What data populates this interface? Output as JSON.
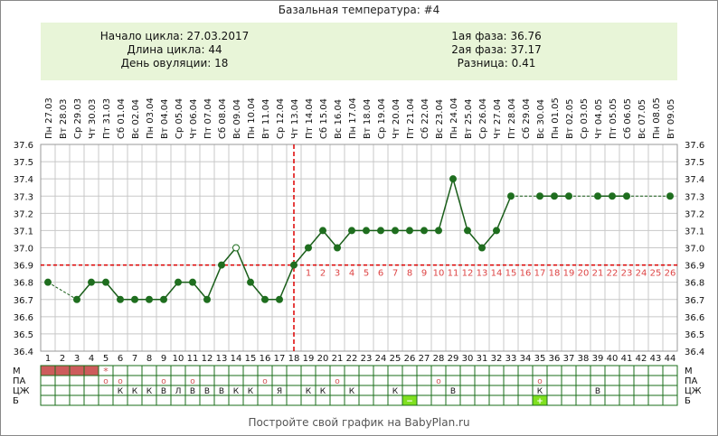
{
  "title": "Базальная температура: #4",
  "info": {
    "left": [
      {
        "label": "Начало цикла:",
        "value": "27.03.2017"
      },
      {
        "label": "Длина цикла:",
        "value": "44"
      },
      {
        "label": "День овуляции:",
        "value": "18"
      }
    ],
    "right": [
      {
        "label": "1ая фаза:",
        "value": "36.76"
      },
      {
        "label": "2ая фаза:",
        "value": "37.17"
      },
      {
        "label": "Разница:",
        "value": "0.41"
      }
    ]
  },
  "footer": "Постройте свой график на BabyPlan.ru",
  "colors": {
    "line": "#1a5e1a",
    "marker": "#1f6e1f",
    "coverline": "#dd0000",
    "post_ovulation_numbers": "#dd4444",
    "grid": "#c8c8c8",
    "period": "#cd5c5c",
    "green_cell": "#80e020",
    "info_bg": "#e8f5d8"
  },
  "chart_data": {
    "type": "line",
    "ylim": [
      36.4,
      37.6
    ],
    "yticks": [
      "36.4",
      "36.5",
      "36.6",
      "36.7",
      "36.8",
      "36.9",
      "37.0",
      "37.1",
      "37.2",
      "37.3",
      "37.4",
      "37.5",
      "37.6"
    ],
    "cycle_days": [
      1,
      2,
      3,
      4,
      5,
      6,
      7,
      8,
      9,
      10,
      11,
      12,
      13,
      14,
      15,
      16,
      17,
      18,
      19,
      20,
      21,
      22,
      23,
      24,
      25,
      26,
      27,
      28,
      29,
      30,
      31,
      32,
      33,
      34,
      35,
      36,
      37,
      38,
      39,
      40,
      41,
      42,
      43,
      44
    ],
    "dates": [
      "Пн 27.03",
      "Вт 28.03",
      "Ср 29.03",
      "Чт 30.03",
      "Пт 31.03",
      "Сб 01.04",
      "Вс 02.04",
      "Пн 03.04",
      "Вт 04.04",
      "Ср 05.04",
      "Чт 06.04",
      "Пт 07.04",
      "Сб 08.04",
      "Вс 09.04",
      "Пн 10.04",
      "Вт 11.04",
      "Ср 12.04",
      "Чт 13.04",
      "Пт 14.04",
      "Сб 15.04",
      "Вс 16.04",
      "Пн 17.04",
      "Вт 18.04",
      "Ср 19.04",
      "Чт 20.04",
      "Пт 21.04",
      "Сб 22.04",
      "Вс 23.04",
      "Пн 24.04",
      "Вт 25.04",
      "Ср 26.04",
      "Чт 27.04",
      "Пт 28.04",
      "Сб 29.04",
      "Вс 30.04",
      "Пн 01.05",
      "Вт 02.05",
      "Ср 03.05",
      "Чт 04.05",
      "Пт 05.05",
      "Сб 06.05",
      "Вс 07.05",
      "Пн 08.05",
      "Вт 09.05"
    ],
    "temperatures": [
      36.8,
      null,
      36.7,
      36.8,
      36.8,
      36.7,
      36.7,
      36.7,
      36.7,
      36.8,
      36.8,
      36.7,
      36.9,
      37.0,
      36.8,
      36.7,
      36.7,
      36.9,
      37.0,
      37.1,
      37.0,
      37.1,
      37.1,
      37.1,
      37.1,
      37.1,
      37.1,
      37.1,
      37.4,
      37.1,
      37.0,
      37.1,
      37.3,
      null,
      37.3,
      37.3,
      37.3,
      null,
      37.3,
      37.3,
      37.3,
      null,
      null,
      37.3
    ],
    "open_markers": [
      14
    ],
    "dashed_segments": [
      [
        1,
        3
      ],
      [
        33,
        35
      ],
      [
        37,
        39
      ],
      [
        41,
        44
      ]
    ],
    "coverline": 36.9,
    "ovulation_day": 18,
    "post_ovulation_labels": [
      "1",
      "2",
      "3",
      "4",
      "5",
      "6",
      "7",
      "8",
      "9",
      "10",
      "11",
      "12",
      "13",
      "14",
      "15",
      "16",
      "17",
      "18",
      "19",
      "20",
      "21",
      "22",
      "23",
      "24",
      "25",
      "26"
    ],
    "moon_days": [
      6,
      35
    ],
    "rows": [
      {
        "label": "М",
        "period_days": [
          1,
          2,
          3,
          4
        ],
        "star_days": [
          5
        ]
      },
      {
        "label": "ПА",
        "marks": {
          "5": "о",
          "6": "о",
          "9": "о",
          "11": "о",
          "16": "о",
          "21": "о",
          "28": "о",
          "35": "о"
        }
      },
      {
        "label": "ЦЖ",
        "marks": {
          "6": "К",
          "7": "К",
          "8": "К",
          "9": "В",
          "10": "Л",
          "11": "В",
          "12": "В",
          "13": "В",
          "14": "К",
          "15": "К",
          "17": "Я",
          "19": "К",
          "20": "К",
          "22": "К",
          "25": "К",
          "29": "В",
          "35": "К",
          "39": "В"
        }
      },
      {
        "label": "Б",
        "marks": {
          "26": "−",
          "35": "+"
        },
        "green_days": [
          26,
          35
        ]
      }
    ]
  }
}
